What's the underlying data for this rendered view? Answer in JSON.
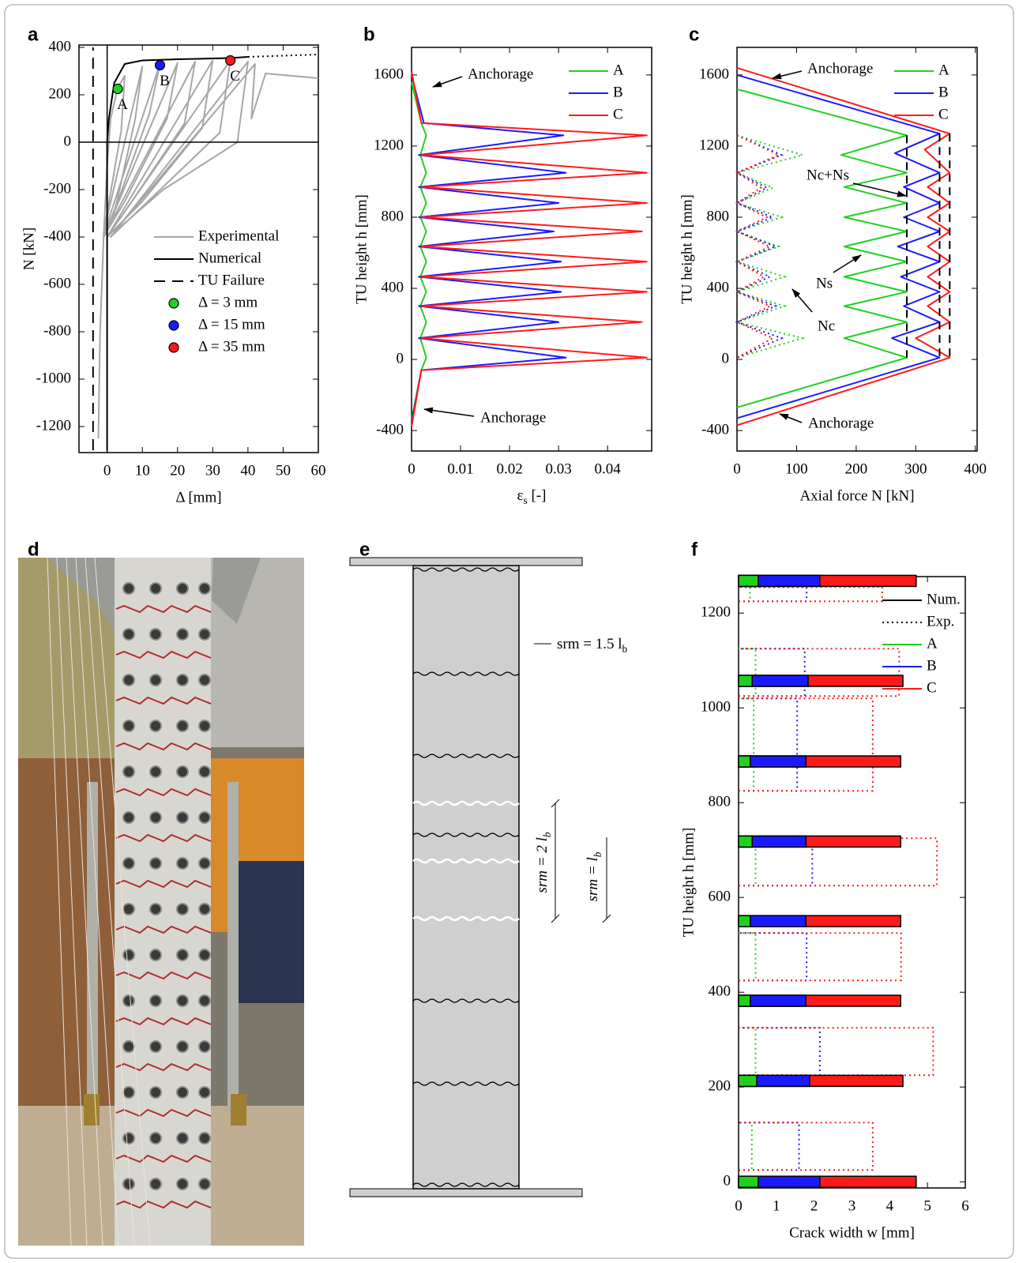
{
  "chart_data": [
    {
      "panel": "a",
      "type": "line",
      "xlabel": "Δ [mm]",
      "ylabel": "N [kN]",
      "xlim": [
        -8,
        60
      ],
      "ylim": [
        -1310,
        410
      ],
      "xticks": [
        0,
        10,
        20,
        30,
        40,
        50,
        60
      ],
      "yticks": [
        -1200,
        -1000,
        -800,
        -600,
        -400,
        -200,
        0,
        200,
        400
      ],
      "legend": "center right",
      "zero_lines": true,
      "series": [
        {
          "name": "Experimental",
          "color": "#a6a6a6",
          "x": [
            -2.5,
            -2,
            -1,
            0,
            1,
            3,
            5,
            4,
            0,
            -1,
            10,
            8,
            2,
            -1,
            15,
            12,
            3,
            -1,
            20,
            17,
            5,
            -1,
            25,
            22,
            7,
            0,
            30,
            27,
            10,
            0,
            35,
            32,
            13,
            1,
            40,
            37,
            16,
            2,
            42,
            41,
            45,
            60
          ],
          "values": [
            -1250,
            -800,
            -400,
            -100,
            100,
            230,
            280,
            50,
            -300,
            -380,
            320,
            100,
            -300,
            -390,
            330,
            120,
            -250,
            -400,
            335,
            100,
            -250,
            -400,
            340,
            80,
            -250,
            -400,
            345,
            60,
            -250,
            -400,
            345,
            40,
            -230,
            -400,
            340,
            0,
            -200,
            -380,
            330,
            100,
            290,
            270
          ]
        },
        {
          "name": "Numerical",
          "color": "#000000",
          "x": [
            0,
            0,
            0.5,
            2,
            5,
            10,
            20,
            35,
            40
          ],
          "values": [
            -1300,
            0,
            100,
            250,
            330,
            345,
            350,
            355,
            360
          ]
        },
        {
          "color": "#000000",
          "dash": "dot",
          "x": [
            40,
            60
          ],
          "values": [
            360,
            370
          ]
        },
        {
          "name": "TU Failure",
          "color": "#000000",
          "dash": "dash",
          "x": [
            -4,
            -4
          ],
          "values": [
            -1300,
            400
          ]
        },
        {
          "name": "Δ = 3 mm",
          "label": "A",
          "color": "#1fd11f",
          "marker": "circle",
          "x": [
            3
          ],
          "values": [
            225
          ]
        },
        {
          "name": "Δ = 15 mm",
          "label": "B",
          "color": "#1a1aff",
          "marker": "circle",
          "x": [
            15
          ],
          "values": [
            325
          ]
        },
        {
          "name": "Δ = 35 mm",
          "label": "C",
          "color": "#ff1a1a",
          "marker": "circle",
          "x": [
            35
          ],
          "values": [
            345
          ]
        }
      ]
    },
    {
      "panel": "b",
      "type": "line",
      "xlabel": {
        "text": "ε",
        "sub": "s",
        "after": " [-]"
      },
      "ylabel": "TU height h [mm]",
      "xlim": [
        0,
        0.049
      ],
      "ylim": [
        -515,
        1755
      ],
      "xticks": [
        0,
        0.01,
        0.02,
        0.03,
        0.04
      ],
      "yticks": [
        -400,
        0,
        400,
        800,
        1200,
        1600
      ],
      "legend": "upper right",
      "annotations": [
        "Anchorage",
        "Anchorage"
      ],
      "series": [
        {
          "name": "A",
          "color": "#1fd11f",
          "x": [
            0,
            0.002,
            0.003,
            0.0018,
            0.003,
            0.0018,
            0.003,
            0.0018,
            0.003,
            0.0018,
            0.003,
            0.0018,
            0.003,
            0.0018,
            0.003,
            0.0018,
            0.003,
            0.002,
            0
          ],
          "values": [
            1560,
            1330,
            1260,
            1150,
            1050,
            970,
            880,
            800,
            720,
            635,
            550,
            465,
            380,
            300,
            210,
            120,
            10,
            -60,
            -340
          ]
        },
        {
          "name": "B",
          "color": "#1a1aff",
          "x": [
            0,
            0.0025,
            0.031,
            0.0015,
            0.0315,
            0.0015,
            0.03,
            0.0015,
            0.029,
            0.0015,
            0.0305,
            0.0015,
            0.0305,
            0.0015,
            0.03,
            0.0015,
            0.0315,
            0.002,
            0
          ],
          "values": [
            1600,
            1330,
            1260,
            1150,
            1050,
            970,
            880,
            800,
            720,
            635,
            550,
            465,
            380,
            300,
            210,
            120,
            10,
            -60,
            -360
          ]
        },
        {
          "name": "C",
          "color": "#ff1a1a",
          "x": [
            0,
            0.002,
            0.048,
            0.002,
            0.048,
            0.002,
            0.048,
            0.002,
            0.047,
            0.002,
            0.048,
            0.002,
            0.048,
            0.002,
            0.047,
            0.002,
            0.048,
            0.002,
            0
          ],
          "values": [
            1620,
            1330,
            1260,
            1150,
            1050,
            970,
            880,
            800,
            720,
            635,
            550,
            465,
            380,
            300,
            210,
            120,
            10,
            -60,
            -380
          ]
        }
      ]
    },
    {
      "panel": "c",
      "type": "line",
      "xlabel": "Axial force N [kN]",
      "ylabel": "TU height h [mm]",
      "xlim": [
        0,
        403
      ],
      "ylim": [
        -515,
        1755
      ],
      "xticks": [
        0,
        100,
        200,
        300,
        400
      ],
      "yticks": [
        -400,
        0,
        400,
        800,
        1200,
        1600
      ],
      "legend": "upper right",
      "annotations": [
        "Anchorage",
        "Anchorage",
        "Nc+Ns",
        "Ns",
        "Nc"
      ],
      "series": [
        {
          "name": "A",
          "color": "#1fd11f",
          "x": [
            0,
            285,
            175,
            285,
            180,
            285,
            180,
            285,
            180,
            285,
            180,
            285,
            180,
            285,
            180,
            285,
            0
          ],
          "values": [
            1520,
            1260,
            1150,
            1050,
            970,
            880,
            800,
            720,
            635,
            550,
            465,
            380,
            300,
            210,
            120,
            10,
            -270
          ]
        },
        {
          "name": "B",
          "color": "#1a1aff",
          "x": [
            0,
            340,
            265,
            340,
            280,
            340,
            280,
            340,
            270,
            340,
            275,
            340,
            280,
            340,
            260,
            340,
            0
          ],
          "values": [
            1600,
            1270,
            1160,
            1050,
            970,
            880,
            800,
            720,
            635,
            550,
            465,
            380,
            300,
            210,
            120,
            10,
            -330
          ]
        },
        {
          "name": "C",
          "color": "#ff1a1a",
          "x": [
            0,
            357,
            315,
            357,
            320,
            357,
            320,
            357,
            320,
            357,
            320,
            357,
            320,
            357,
            300,
            357,
            0
          ],
          "values": [
            1640,
            1270,
            1180,
            1050,
            970,
            880,
            800,
            720,
            635,
            550,
            465,
            380,
            300,
            210,
            120,
            10,
            -370
          ]
        }
      ],
      "dotted_series": [
        {
          "color": "#1fd11f",
          "x": [
            0,
            110,
            0,
            60,
            0,
            75,
            0,
            70,
            0,
            80,
            0,
            80,
            0,
            110,
            0
          ],
          "values": [
            1260,
            1150,
            1050,
            965,
            880,
            800,
            720,
            635,
            550,
            465,
            380,
            300,
            210,
            120,
            10
          ]
        },
        {
          "color": "#1a1aff",
          "x": [
            0,
            75,
            0,
            50,
            0,
            60,
            0,
            65,
            0,
            55,
            0,
            65,
            0,
            75,
            0
          ],
          "values": [
            1260,
            1150,
            1050,
            965,
            880,
            800,
            720,
            635,
            550,
            465,
            380,
            300,
            210,
            120,
            10
          ]
        },
        {
          "color": "#ff1a1a",
          "x": [
            0,
            70,
            0,
            40,
            0,
            50,
            0,
            55,
            0,
            45,
            0,
            55,
            0,
            60,
            0
          ],
          "values": [
            1260,
            1150,
            1050,
            965,
            880,
            800,
            720,
            635,
            550,
            465,
            380,
            300,
            210,
            120,
            10
          ]
        }
      ],
      "failure_lines": [
        285,
        340,
        357
      ]
    },
    {
      "panel": "f",
      "type": "bar",
      "xlabel": "Crack width w [mm]",
      "ylabel": "TU height h [mm]",
      "xlim": [
        0,
        6
      ],
      "ylim": [
        -13,
        1277
      ],
      "xticks": [
        0,
        1,
        2,
        3,
        4,
        5,
        6
      ],
      "yticks": [
        0,
        200,
        400,
        600,
        800,
        1000,
        1200
      ],
      "legend": "upper right",
      "legend_extra": [
        {
          "name": "Num.",
          "dash": "solid"
        },
        {
          "name": "Exp.",
          "dash": "dot"
        }
      ],
      "y": [
        1268,
        1057,
        887,
        718,
        550,
        382,
        213,
        0
      ],
      "series": [
        {
          "name": "A",
          "color": "#1fd11f",
          "values": [
            0.52,
            0.36,
            0.31,
            0.36,
            0.31,
            0.31,
            0.48,
            0.52
          ]
        },
        {
          "name": "B",
          "color": "#1a1aff",
          "values": [
            2.15,
            1.84,
            1.78,
            1.78,
            1.78,
            1.78,
            1.88,
            2.15
          ]
        },
        {
          "name": "C",
          "color": "#ff1a1a",
          "values": [
            4.7,
            4.35,
            4.29,
            4.29,
            4.29,
            4.29,
            4.35,
            4.7
          ]
        }
      ],
      "exp_zones": [
        [
          1225,
          1255
        ],
        [
          1025,
          1125
        ],
        [
          825,
          1020
        ],
        [
          625,
          725
        ],
        [
          425,
          525
        ],
        [
          225,
          325
        ],
        [
          25,
          125
        ]
      ],
      "exp_series": [
        {
          "color": "#1fd11f",
          "values": [
            0.3,
            0.45,
            0.4,
            0.45,
            0.45,
            0.45,
            0.35
          ]
        },
        {
          "color": "#1a1aff",
          "values": [
            1.8,
            1.75,
            1.55,
            1.95,
            1.8,
            2.15,
            1.6
          ]
        },
        {
          "color": "#ff1a1a",
          "values": [
            3.8,
            4.25,
            3.55,
            5.25,
            4.3,
            5.15,
            3.55
          ]
        }
      ]
    }
  ],
  "photo": {
    "panel": "d"
  },
  "diagram": {
    "panel": "e",
    "annotations": [
      {
        "text": "srm = 1.5 l",
        "sub": "b"
      },
      {
        "text": "srm = 2 l",
        "sub": "b"
      },
      {
        "text": "srm = l",
        "sub": "b"
      }
    ]
  }
}
